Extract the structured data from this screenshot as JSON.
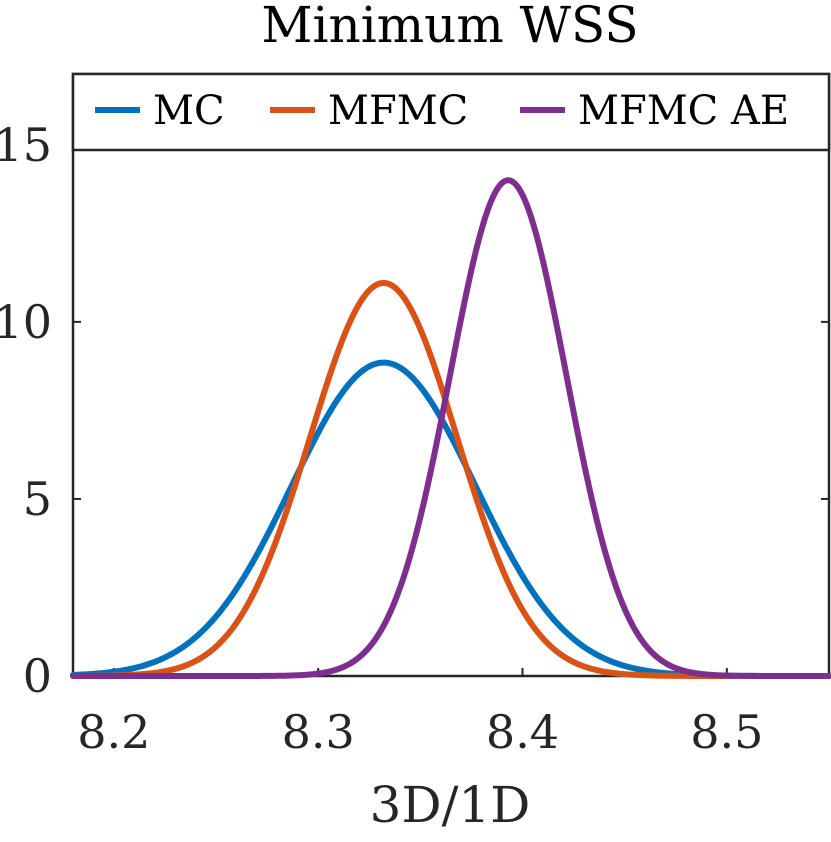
{
  "chart_data": {
    "type": "line",
    "title": "Minimum WSS",
    "xlabel": "3D/1D",
    "ylabel": "",
    "xlim": [
      8.18,
      8.55
    ],
    "ylim": [
      0,
      17
    ],
    "xticks": [
      8.2,
      8.3,
      8.4,
      8.5
    ],
    "xtick_labels": [
      "8.2",
      "8.3",
      "8.4",
      "8.5"
    ],
    "yticks": [
      0,
      5,
      10,
      15
    ],
    "ytick_labels": [
      "0",
      "5",
      "10",
      "15"
    ],
    "legend_position": "top",
    "series": [
      {
        "name": "MC",
        "color": "#0072BD",
        "distribution": "normal",
        "mean": 8.332,
        "std": 0.045,
        "peak": 8.85
      },
      {
        "name": "MFMC",
        "color": "#D95319",
        "distribution": "normal",
        "mean": 8.332,
        "std": 0.036,
        "peak": 11.1
      },
      {
        "name": "MFMC AE",
        "color": "#7E2F8E",
        "distribution": "normal",
        "mean": 8.393,
        "std": 0.0285,
        "peak": 14.0
      }
    ]
  }
}
